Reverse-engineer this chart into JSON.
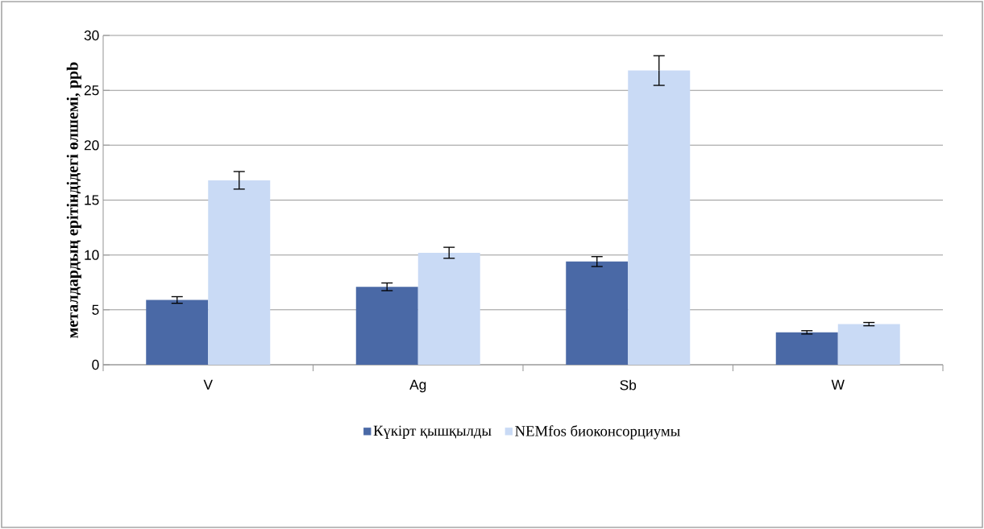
{
  "chart_data": {
    "type": "bar",
    "ylabel": "**металдардың ерітіндідегі өлшемі, ppb**",
    "categories": [
      "V",
      "Ag",
      "Sb",
      "W"
    ],
    "series": [
      {
        "name": "Күкірт қышқылды",
        "color": "#4a69a6",
        "values": [
          5.9,
          7.1,
          9.4,
          2.95
        ],
        "errors": [
          0.3,
          0.35,
          0.45,
          0.15
        ]
      },
      {
        "name": "NEMfos биоконсорциумы",
        "color": "#c9daf5",
        "values": [
          16.8,
          10.2,
          26.8,
          3.7
        ],
        "errors": [
          0.8,
          0.5,
          1.35,
          0.15
        ]
      }
    ],
    "ylim": [
      0,
      30
    ],
    "yticks": [
      0,
      5,
      10,
      15,
      20,
      25,
      30
    ],
    "grid": "y",
    "legend": "bottom"
  }
}
